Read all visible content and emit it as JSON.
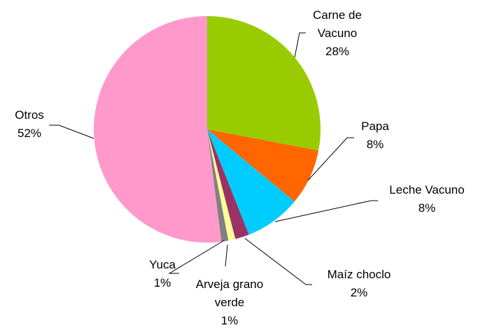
{
  "chart_data": {
    "type": "pie",
    "categories": [
      "Carne de Vacuno",
      "Papa",
      "Leche Vacuno",
      "Maíz choclo",
      "Arveja grano verde",
      "Yuca",
      "Otros"
    ],
    "values": [
      28,
      8,
      8,
      2,
      1,
      1,
      52
    ],
    "value_labels": [
      "28%",
      "8%",
      "8%",
      "2%",
      "1%",
      "1%",
      "52%"
    ],
    "colors": [
      "#99cc00",
      "#ff6600",
      "#00ccff",
      "#993366",
      "#ffff99",
      "#808080",
      "#ff99cc"
    ]
  }
}
